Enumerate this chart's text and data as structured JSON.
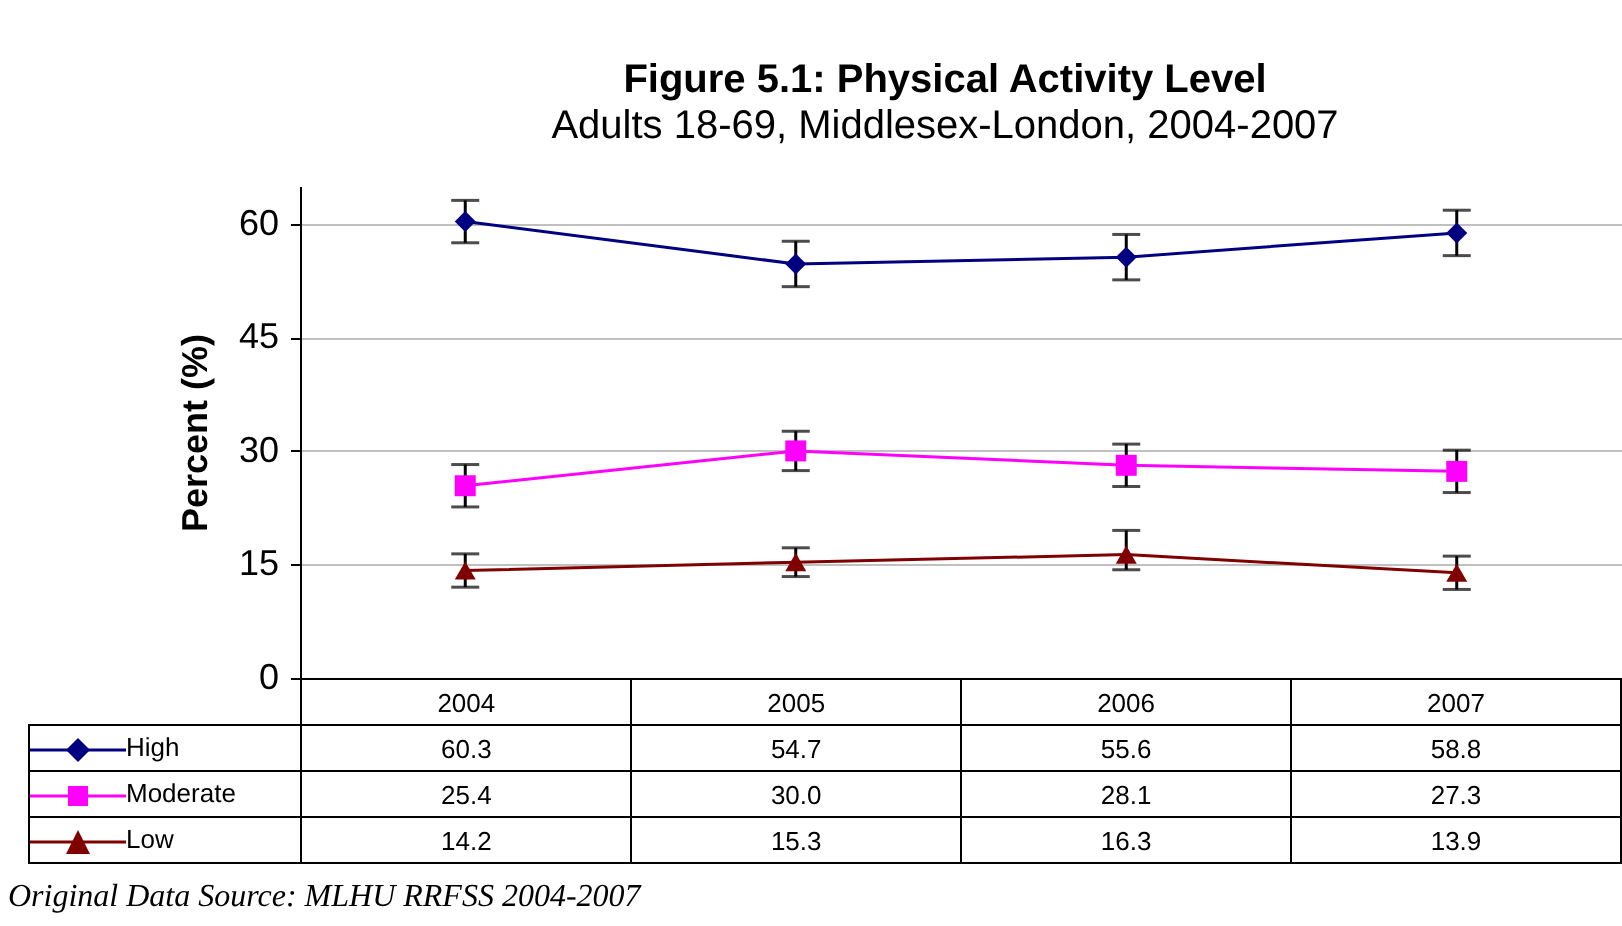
{
  "chart_data": {
    "type": "line",
    "title": "Figure 5.1: Physical Activity Level",
    "subtitle": "Adults 18-69, Middlesex-London, 2004-2007",
    "ylabel": "Percent (%)",
    "categories": [
      "2004",
      "2005",
      "2006",
      "2007"
    ],
    "ylim": [
      0,
      65
    ],
    "yticks": [
      0,
      15,
      30,
      45,
      60
    ],
    "grid": "y",
    "legend": "bottom",
    "annotations": [
      "Original Data Source: MLHU RRFSS 2004-2007"
    ],
    "series": [
      {
        "name": "High",
        "color": "#000080",
        "marker": "diamond",
        "values": [
          60.3,
          54.7,
          55.6,
          58.8
        ],
        "value_labels": [
          "60.3",
          "54.7",
          "55.6",
          "58.8"
        ],
        "errors": [
          2.8,
          3.0,
          3.0,
          3.0
        ]
      },
      {
        "name": "Moderate",
        "color": "#ff00ff",
        "marker": "square",
        "values": [
          25.4,
          30.0,
          28.1,
          27.3
        ],
        "value_labels": [
          "25.4",
          "30.0",
          "28.1",
          "27.3"
        ],
        "errors": [
          2.8,
          2.6,
          2.8,
          2.8
        ]
      },
      {
        "name": "Low",
        "color": "#800000",
        "marker": "triangle",
        "values": [
          14.2,
          15.3,
          16.3,
          13.9
        ],
        "value_labels": [
          "14.2",
          "15.3",
          "16.3",
          "13.9"
        ],
        "errors": [
          2.2,
          1.9,
          [
            14.3,
            19.5
          ],
          2.2
        ]
      }
    ]
  }
}
